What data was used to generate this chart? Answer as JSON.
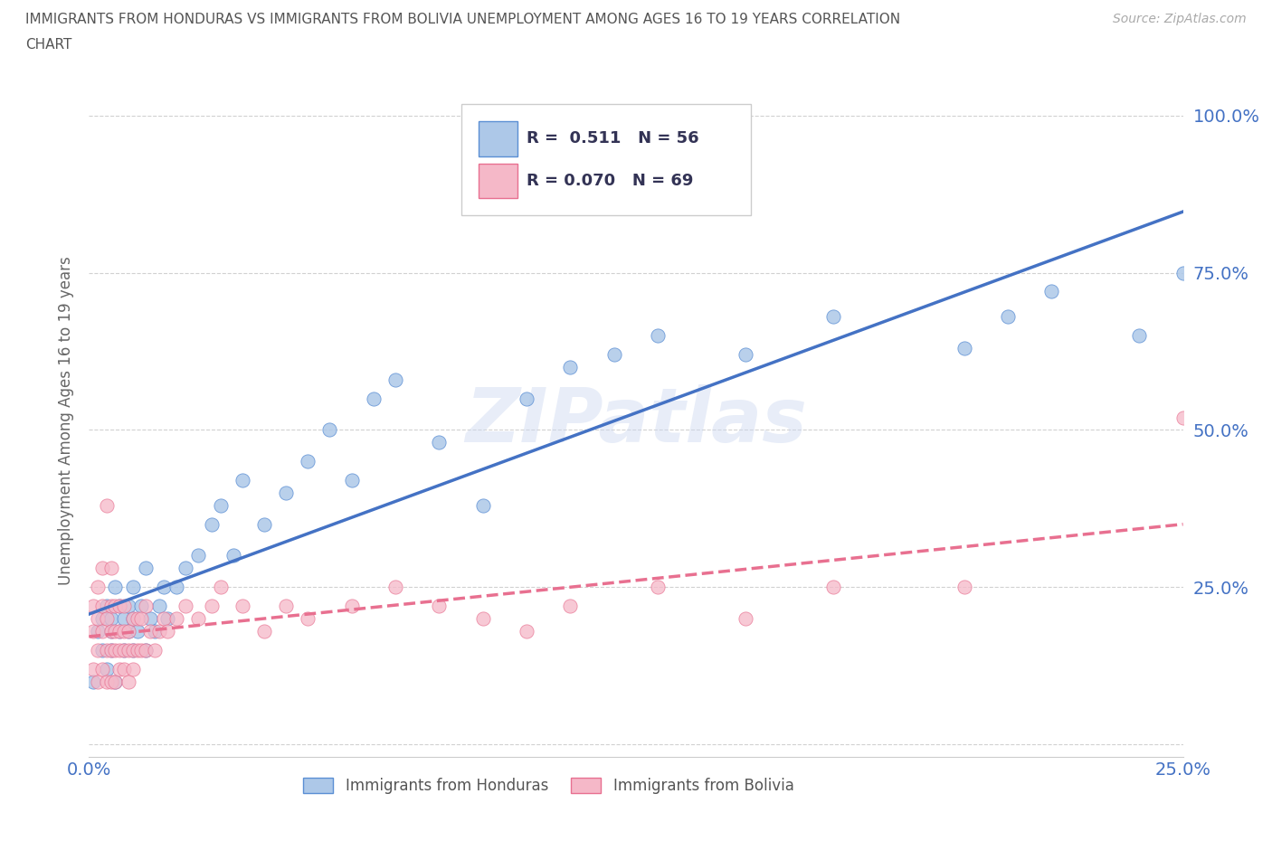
{
  "title_line1": "IMMIGRANTS FROM HONDURAS VS IMMIGRANTS FROM BOLIVIA UNEMPLOYMENT AMONG AGES 16 TO 19 YEARS CORRELATION",
  "title_line2": "CHART",
  "source": "Source: ZipAtlas.com",
  "ylabel": "Unemployment Among Ages 16 to 19 years",
  "xlim": [
    0.0,
    0.25
  ],
  "ylim": [
    -0.02,
    1.05
  ],
  "xticks": [
    0.0,
    0.05,
    0.1,
    0.15,
    0.2,
    0.25
  ],
  "xticklabels": [
    "0.0%",
    "",
    "",
    "",
    "",
    "25.0%"
  ],
  "yticks": [
    0.0,
    0.25,
    0.5,
    0.75,
    1.0
  ],
  "yticklabels": [
    "",
    "25.0%",
    "50.0%",
    "75.0%",
    "100.0%"
  ],
  "honduras_color": "#adc8e8",
  "bolivia_color": "#f5b8c8",
  "honduras_edge_color": "#5b8fd4",
  "bolivia_edge_color": "#e87090",
  "honduras_line_color": "#4472c4",
  "bolivia_line_color": "#e87090",
  "honduras_R": 0.511,
  "honduras_N": 56,
  "bolivia_R": 0.07,
  "bolivia_N": 69,
  "legend_label_honduras": "Immigrants from Honduras",
  "legend_label_bolivia": "Immigrants from Bolivia",
  "watermark": "ZIPatlas",
  "background_color": "#ffffff",
  "grid_color": "#cccccc",
  "title_color": "#555555",
  "axis_label_color": "#666666",
  "tick_label_color": "#4472c4",
  "honduras_scatter_x": [
    0.001,
    0.002,
    0.003,
    0.003,
    0.004,
    0.004,
    0.005,
    0.005,
    0.005,
    0.006,
    0.006,
    0.007,
    0.007,
    0.008,
    0.008,
    0.009,
    0.009,
    0.01,
    0.01,
    0.01,
    0.011,
    0.012,
    0.013,
    0.013,
    0.014,
    0.015,
    0.016,
    0.017,
    0.018,
    0.02,
    0.022,
    0.025,
    0.028,
    0.03,
    0.033,
    0.035,
    0.04,
    0.045,
    0.05,
    0.055,
    0.06,
    0.065,
    0.07,
    0.08,
    0.09,
    0.1,
    0.11,
    0.12,
    0.13,
    0.15,
    0.17,
    0.2,
    0.21,
    0.22,
    0.24,
    0.25
  ],
  "honduras_scatter_y": [
    0.1,
    0.18,
    0.15,
    0.2,
    0.12,
    0.22,
    0.15,
    0.18,
    0.2,
    0.1,
    0.25,
    0.18,
    0.22,
    0.15,
    0.2,
    0.18,
    0.22,
    0.15,
    0.2,
    0.25,
    0.18,
    0.22,
    0.15,
    0.28,
    0.2,
    0.18,
    0.22,
    0.25,
    0.2,
    0.25,
    0.28,
    0.3,
    0.35,
    0.38,
    0.3,
    0.42,
    0.35,
    0.4,
    0.45,
    0.5,
    0.42,
    0.55,
    0.58,
    0.48,
    0.38,
    0.55,
    0.6,
    0.62,
    0.65,
    0.62,
    0.68,
    0.63,
    0.68,
    0.72,
    0.65,
    0.75
  ],
  "bolivia_scatter_x": [
    0.001,
    0.001,
    0.001,
    0.002,
    0.002,
    0.002,
    0.002,
    0.003,
    0.003,
    0.003,
    0.003,
    0.004,
    0.004,
    0.004,
    0.004,
    0.005,
    0.005,
    0.005,
    0.005,
    0.005,
    0.006,
    0.006,
    0.006,
    0.006,
    0.007,
    0.007,
    0.007,
    0.007,
    0.008,
    0.008,
    0.008,
    0.008,
    0.009,
    0.009,
    0.009,
    0.01,
    0.01,
    0.01,
    0.011,
    0.011,
    0.012,
    0.012,
    0.013,
    0.013,
    0.014,
    0.015,
    0.016,
    0.017,
    0.018,
    0.02,
    0.022,
    0.025,
    0.028,
    0.03,
    0.035,
    0.04,
    0.045,
    0.05,
    0.06,
    0.07,
    0.08,
    0.09,
    0.1,
    0.11,
    0.13,
    0.15,
    0.17,
    0.2,
    0.25
  ],
  "bolivia_scatter_y": [
    0.12,
    0.18,
    0.22,
    0.1,
    0.15,
    0.2,
    0.25,
    0.12,
    0.18,
    0.22,
    0.28,
    0.1,
    0.15,
    0.2,
    0.38,
    0.1,
    0.15,
    0.18,
    0.22,
    0.28,
    0.1,
    0.15,
    0.18,
    0.22,
    0.12,
    0.15,
    0.18,
    0.22,
    0.12,
    0.15,
    0.18,
    0.22,
    0.1,
    0.15,
    0.18,
    0.12,
    0.15,
    0.2,
    0.15,
    0.2,
    0.15,
    0.2,
    0.15,
    0.22,
    0.18,
    0.15,
    0.18,
    0.2,
    0.18,
    0.2,
    0.22,
    0.2,
    0.22,
    0.25,
    0.22,
    0.18,
    0.22,
    0.2,
    0.22,
    0.25,
    0.22,
    0.2,
    0.18,
    0.22,
    0.25,
    0.2,
    0.25,
    0.25,
    0.52
  ]
}
